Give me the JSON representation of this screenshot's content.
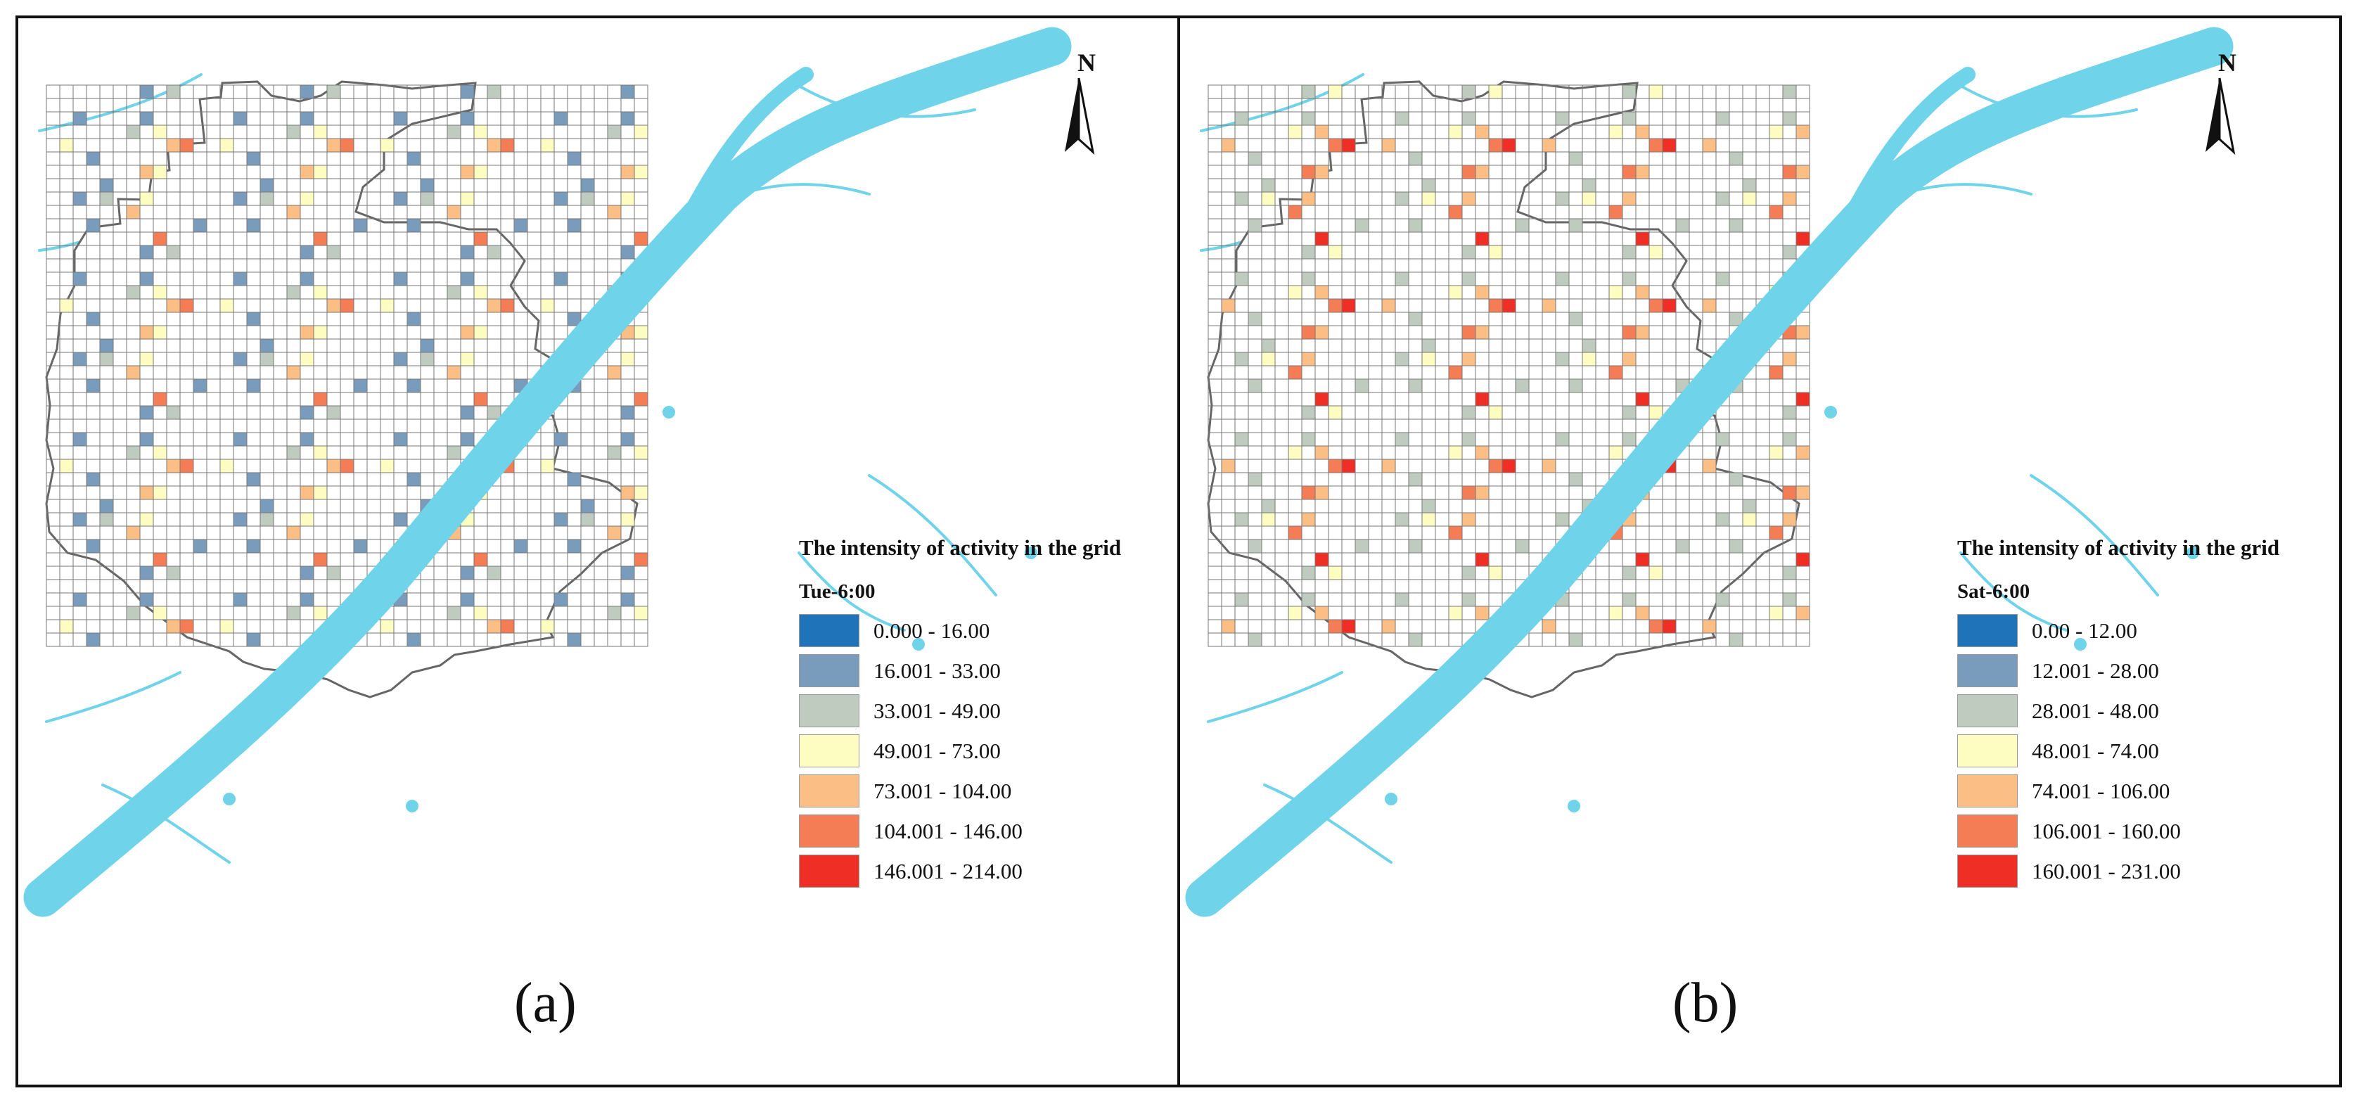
{
  "legend_title": "The intensity of activity in the grid",
  "north_label": "N",
  "colors": {
    "water": "#6fd3ea",
    "district_outline": "#666666",
    "grid_line": "#777777",
    "classes": [
      "#1f73b8",
      "#7a9cbc",
      "#c0cbbf",
      "#fdfdc1",
      "#fbbe85",
      "#f57d56",
      "#ef2f25"
    ]
  },
  "panels": [
    {
      "id": "a",
      "label": "(a)",
      "legend_subtitle": "Tue-6:00",
      "ranges": [
        "0.000 - 16.00",
        "16.001 - 33.00",
        "33.001 - 49.00",
        "49.001 - 73.00",
        "73.001 - 104.00",
        "104.001 - 146.00",
        "146.001 - 214.00"
      ]
    },
    {
      "id": "b",
      "label": "(b)",
      "legend_subtitle": "Sat-6:00",
      "ranges": [
        "0.00 - 12.00",
        "12.001 - 28.00",
        "28.001 - 48.00",
        "48.001 - 74.00",
        "74.001 - 106.00",
        "106.001 - 160.00",
        "160.001 - 231.00"
      ]
    }
  ]
}
